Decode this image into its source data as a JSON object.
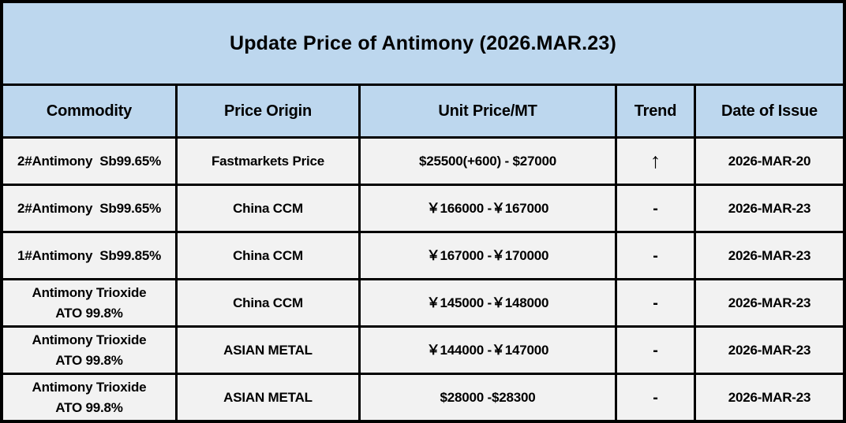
{
  "chart_data": {
    "type": "table",
    "title": "Update Price of Antimony (2026.MAR.23)",
    "columns": [
      "Commodity",
      "Price Origin",
      "Unit Price/MT",
      "Trend",
      "Date of Issue"
    ],
    "rows": [
      {
        "commodity": "2#Antimony  Sb99.65%",
        "origin": "Fastmarkets Price",
        "price": "$25500(+600) - $27000",
        "trend": "↑",
        "date": "2026-MAR-20"
      },
      {
        "commodity": "2#Antimony  Sb99.65%",
        "origin": "China CCM",
        "price": "￥166000 -￥167000",
        "trend": "-",
        "date": "2026-MAR-23"
      },
      {
        "commodity": "1#Antimony  Sb99.85%",
        "origin": "China CCM",
        "price": "￥167000 -￥170000",
        "trend": "-",
        "date": "2026-MAR-23"
      },
      {
        "commodity": "Antimony Trioxide\nATO 99.8%",
        "origin": "China CCM",
        "price": "￥145000 -￥148000",
        "trend": "-",
        "date": "2026-MAR-23"
      },
      {
        "commodity": "Antimony Trioxide\nATO 99.8%",
        "origin": "ASIAN METAL",
        "price": "￥144000 -￥147000",
        "trend": "-",
        "date": "2026-MAR-23"
      },
      {
        "commodity": "Antimony Trioxide\nATO 99.8%",
        "origin": "ASIAN METAL",
        "price": "$28000 -$28300",
        "trend": "-",
        "date": "2026-MAR-23"
      }
    ],
    "layout": {
      "header_position": "top",
      "grid": true
    }
  },
  "colors": {
    "title_header_bg": "#BDD7EE",
    "row_bg": "#F2F2F2",
    "border": "#000000",
    "text": "#000000"
  }
}
